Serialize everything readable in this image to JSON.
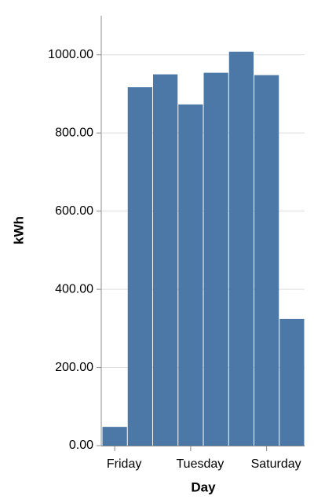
{
  "chart_data": {
    "type": "bar",
    "x_label": "Day",
    "y_label": "kWh",
    "categories": [
      "Friday",
      null,
      null,
      "Tuesday",
      null,
      null,
      "Saturday",
      null
    ],
    "values": [
      48,
      917,
      950,
      873,
      954,
      1008,
      948,
      324
    ],
    "color": "#4c78a8",
    "ylim": [
      0,
      1100
    ],
    "yticks": [
      {
        "value": 0,
        "label": "0.00"
      },
      {
        "value": 200,
        "label": "200.00"
      },
      {
        "value": 400,
        "label": "400.00"
      },
      {
        "value": 600,
        "label": "600.00"
      },
      {
        "value": 800,
        "label": "800.00"
      },
      {
        "value": 1000,
        "label": "1000.00"
      }
    ],
    "grid": true
  }
}
